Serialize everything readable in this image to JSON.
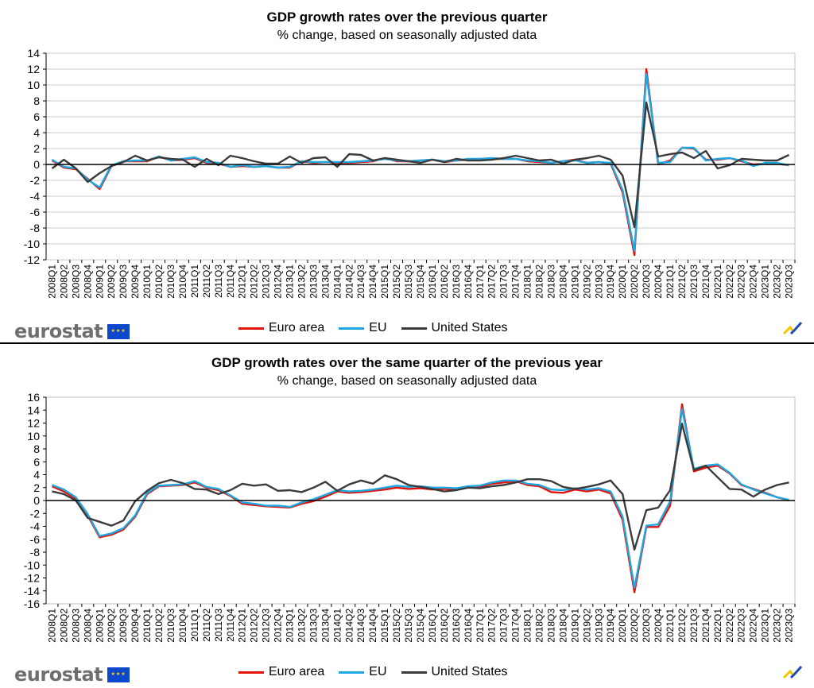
{
  "brand": {
    "logo_text": "eurostat",
    "flag_icon": "eu-flag-icon",
    "mark_icon": "eurostat-check-mark-icon"
  },
  "colors": {
    "euro_area": "#e3120b",
    "eu": "#1ea7e1",
    "united_states": "#3b3b3b"
  },
  "chart_data": [
    {
      "type": "line",
      "title": "GDP growth rates over the previous quarter",
      "subtitle": "% change, based on seasonally adjusted data",
      "xlabel": "",
      "ylabel": "",
      "ylim": [
        -12,
        14
      ],
      "yticks": [
        14,
        12,
        10,
        8,
        6,
        4,
        2,
        0,
        -2,
        -4,
        -6,
        -8,
        -10,
        -12
      ],
      "grid": true,
      "legend": "bottom",
      "categories": [
        "2008Q1",
        "2008Q2",
        "2008Q3",
        "2008Q4",
        "2009Q1",
        "2009Q2",
        "2009Q3",
        "2009Q4",
        "2010Q1",
        "2010Q2",
        "2010Q3",
        "2010Q4",
        "2011Q1",
        "2011Q2",
        "2011Q3",
        "2011Q4",
        "2012Q1",
        "2012Q2",
        "2012Q3",
        "2012Q4",
        "2013Q1",
        "2013Q2",
        "2013Q3",
        "2013Q4",
        "2014Q1",
        "2014Q2",
        "2014Q3",
        "2014Q4",
        "2015Q1",
        "2015Q2",
        "2015Q3",
        "2015Q4",
        "2016Q1",
        "2016Q2",
        "2016Q3",
        "2016Q4",
        "2017Q1",
        "2017Q2",
        "2017Q3",
        "2017Q4",
        "2018Q1",
        "2018Q2",
        "2018Q3",
        "2018Q4",
        "2019Q1",
        "2019Q2",
        "2019Q3",
        "2019Q4",
        "2020Q1",
        "2020Q2",
        "2020Q3",
        "2020Q4",
        "2021Q1",
        "2021Q2",
        "2021Q3",
        "2021Q4",
        "2022Q1",
        "2022Q2",
        "2022Q3",
        "2022Q4",
        "2023Q1",
        "2023Q2",
        "2023Q3"
      ],
      "series": [
        {
          "name": "Euro area",
          "values": [
            0.5,
            -0.4,
            -0.6,
            -1.8,
            -3.1,
            -0.2,
            0.4,
            0.4,
            0.4,
            1.0,
            0.5,
            0.6,
            0.8,
            0.2,
            0.1,
            -0.3,
            -0.2,
            -0.3,
            -0.2,
            -0.4,
            -0.4,
            0.4,
            0.2,
            0.3,
            0.2,
            0.2,
            0.3,
            0.4,
            0.8,
            0.4,
            0.4,
            0.5,
            0.6,
            0.3,
            0.5,
            0.6,
            0.7,
            0.7,
            0.7,
            0.7,
            0.4,
            0.3,
            0.2,
            0.4,
            0.6,
            0.2,
            0.3,
            0.1,
            -3.5,
            -11.4,
            12.0,
            0.0,
            0.5,
            2.1,
            2.0,
            0.6,
            0.6,
            0.8,
            0.4,
            0.0,
            0.1,
            0.1,
            -0.1
          ]
        },
        {
          "name": "EU",
          "values": [
            0.6,
            -0.3,
            -0.5,
            -1.9,
            -2.9,
            -0.1,
            0.4,
            0.5,
            0.5,
            1.0,
            0.5,
            0.7,
            0.9,
            0.3,
            0.2,
            -0.3,
            -0.1,
            -0.3,
            -0.2,
            -0.4,
            -0.3,
            0.4,
            0.3,
            0.3,
            0.3,
            0.3,
            0.4,
            0.5,
            0.7,
            0.5,
            0.4,
            0.5,
            0.6,
            0.4,
            0.5,
            0.7,
            0.7,
            0.8,
            0.7,
            0.7,
            0.5,
            0.4,
            0.2,
            0.4,
            0.5,
            0.2,
            0.3,
            0.2,
            -3.2,
            -10.9,
            11.4,
            0.2,
            0.3,
            2.1,
            2.1,
            0.5,
            0.7,
            0.8,
            0.5,
            -0.2,
            0.2,
            0.2,
            -0.1
          ]
        },
        {
          "name": "United States",
          "values": [
            -0.5,
            0.6,
            -0.5,
            -2.2,
            -1.1,
            -0.2,
            0.3,
            1.1,
            0.5,
            0.9,
            0.7,
            0.6,
            -0.3,
            0.7,
            -0.1,
            1.1,
            0.8,
            0.4,
            0.1,
            0.1,
            1.0,
            0.2,
            0.8,
            0.9,
            -0.3,
            1.3,
            1.2,
            0.5,
            0.8,
            0.6,
            0.4,
            0.2,
            0.6,
            0.3,
            0.7,
            0.5,
            0.5,
            0.6,
            0.8,
            1.1,
            0.8,
            0.5,
            0.6,
            0.1,
            0.6,
            0.8,
            1.1,
            0.6,
            -1.4,
            -7.9,
            7.8,
            1.0,
            1.3,
            1.5,
            0.8,
            1.7,
            -0.5,
            -0.1,
            0.7,
            0.6,
            0.5,
            0.5,
            1.2
          ]
        }
      ]
    },
    {
      "type": "line",
      "title": "GDP growth rates over the same quarter of the previous year",
      "subtitle": "% change, based on seasonally adjusted data",
      "xlabel": "",
      "ylabel": "",
      "ylim": [
        -16,
        16
      ],
      "yticks": [
        16,
        14,
        12,
        10,
        8,
        6,
        4,
        2,
        0,
        -2,
        -4,
        -6,
        -8,
        -10,
        -12,
        -14,
        -16
      ],
      "grid": false,
      "legend": "bottom",
      "categories": [
        "2008Q1",
        "2008Q2",
        "2008Q3",
        "2008Q4",
        "2009Q1",
        "2009Q2",
        "2009Q3",
        "2009Q4",
        "2010Q1",
        "2010Q2",
        "2010Q3",
        "2010Q4",
        "2011Q1",
        "2011Q2",
        "2011Q3",
        "2011Q4",
        "2012Q1",
        "2012Q2",
        "2012Q3",
        "2012Q4",
        "2013Q1",
        "2013Q2",
        "2013Q3",
        "2013Q4",
        "2014Q1",
        "2014Q2",
        "2014Q3",
        "2014Q4",
        "2015Q1",
        "2015Q2",
        "2015Q3",
        "2015Q4",
        "2016Q1",
        "2016Q2",
        "2016Q3",
        "2016Q4",
        "2017Q1",
        "2017Q2",
        "2017Q3",
        "2017Q4",
        "2018Q1",
        "2018Q2",
        "2018Q3",
        "2018Q4",
        "2019Q1",
        "2019Q2",
        "2019Q3",
        "2019Q4",
        "2020Q1",
        "2020Q2",
        "2020Q3",
        "2020Q4",
        "2021Q1",
        "2021Q2",
        "2021Q3",
        "2021Q4",
        "2022Q1",
        "2022Q2",
        "2022Q3",
        "2022Q4",
        "2023Q1",
        "2023Q2",
        "2023Q3"
      ],
      "series": [
        {
          "name": "Euro area",
          "values": [
            2.2,
            1.4,
            0.3,
            -2.3,
            -5.7,
            -5.3,
            -4.5,
            -2.5,
            1.0,
            2.2,
            2.3,
            2.4,
            2.8,
            2.0,
            1.6,
            0.7,
            -0.5,
            -0.7,
            -0.9,
            -1.0,
            -1.1,
            -0.5,
            -0.1,
            0.6,
            1.4,
            1.2,
            1.3,
            1.5,
            1.7,
            2.0,
            1.8,
            1.9,
            1.7,
            1.8,
            1.7,
            2.0,
            2.1,
            2.6,
            2.8,
            3.0,
            2.4,
            2.2,
            1.3,
            1.2,
            1.7,
            1.4,
            1.7,
            1.1,
            -3.0,
            -14.2,
            -4.1,
            -4.1,
            -0.8,
            14.9,
            4.5,
            5.1,
            5.4,
            4.2,
            2.4,
            1.8,
            1.2,
            0.5,
            0.0
          ]
        },
        {
          "name": "EU",
          "values": [
            2.4,
            1.7,
            0.5,
            -2.1,
            -5.5,
            -5.1,
            -4.3,
            -2.3,
            1.2,
            2.3,
            2.4,
            2.5,
            3.0,
            2.1,
            1.8,
            0.8,
            -0.3,
            -0.5,
            -0.8,
            -0.8,
            -1.0,
            -0.3,
            0.2,
            0.9,
            1.6,
            1.4,
            1.5,
            1.7,
            2.0,
            2.3,
            2.1,
            2.2,
            2.0,
            2.0,
            1.9,
            2.2,
            2.3,
            2.8,
            3.1,
            3.1,
            2.6,
            2.4,
            1.7,
            1.6,
            1.9,
            1.7,
            1.9,
            1.4,
            -2.5,
            -13.5,
            -3.9,
            -3.7,
            -0.1,
            14.2,
            4.9,
            5.4,
            5.6,
            4.3,
            2.5,
            1.7,
            1.1,
            0.5,
            0.1
          ]
        },
        {
          "name": "United States",
          "values": [
            1.4,
            1.0,
            0.0,
            -2.7,
            -3.3,
            -3.9,
            -3.1,
            -0.1,
            1.5,
            2.7,
            3.2,
            2.7,
            1.8,
            1.7,
            1.0,
            1.6,
            2.6,
            2.3,
            2.5,
            1.5,
            1.6,
            1.3,
            2.0,
            2.9,
            1.5,
            2.5,
            3.1,
            2.6,
            3.9,
            3.3,
            2.4,
            2.1,
            1.8,
            1.4,
            1.6,
            2.0,
            1.9,
            2.2,
            2.4,
            2.8,
            3.3,
            3.3,
            3.0,
            2.1,
            1.8,
            2.1,
            2.5,
            3.1,
            1.0,
            -7.6,
            -1.5,
            -1.1,
            1.6,
            11.9,
            4.7,
            5.4,
            3.6,
            1.8,
            1.7,
            0.6,
            1.7,
            2.4,
            2.8
          ]
        }
      ]
    }
  ]
}
